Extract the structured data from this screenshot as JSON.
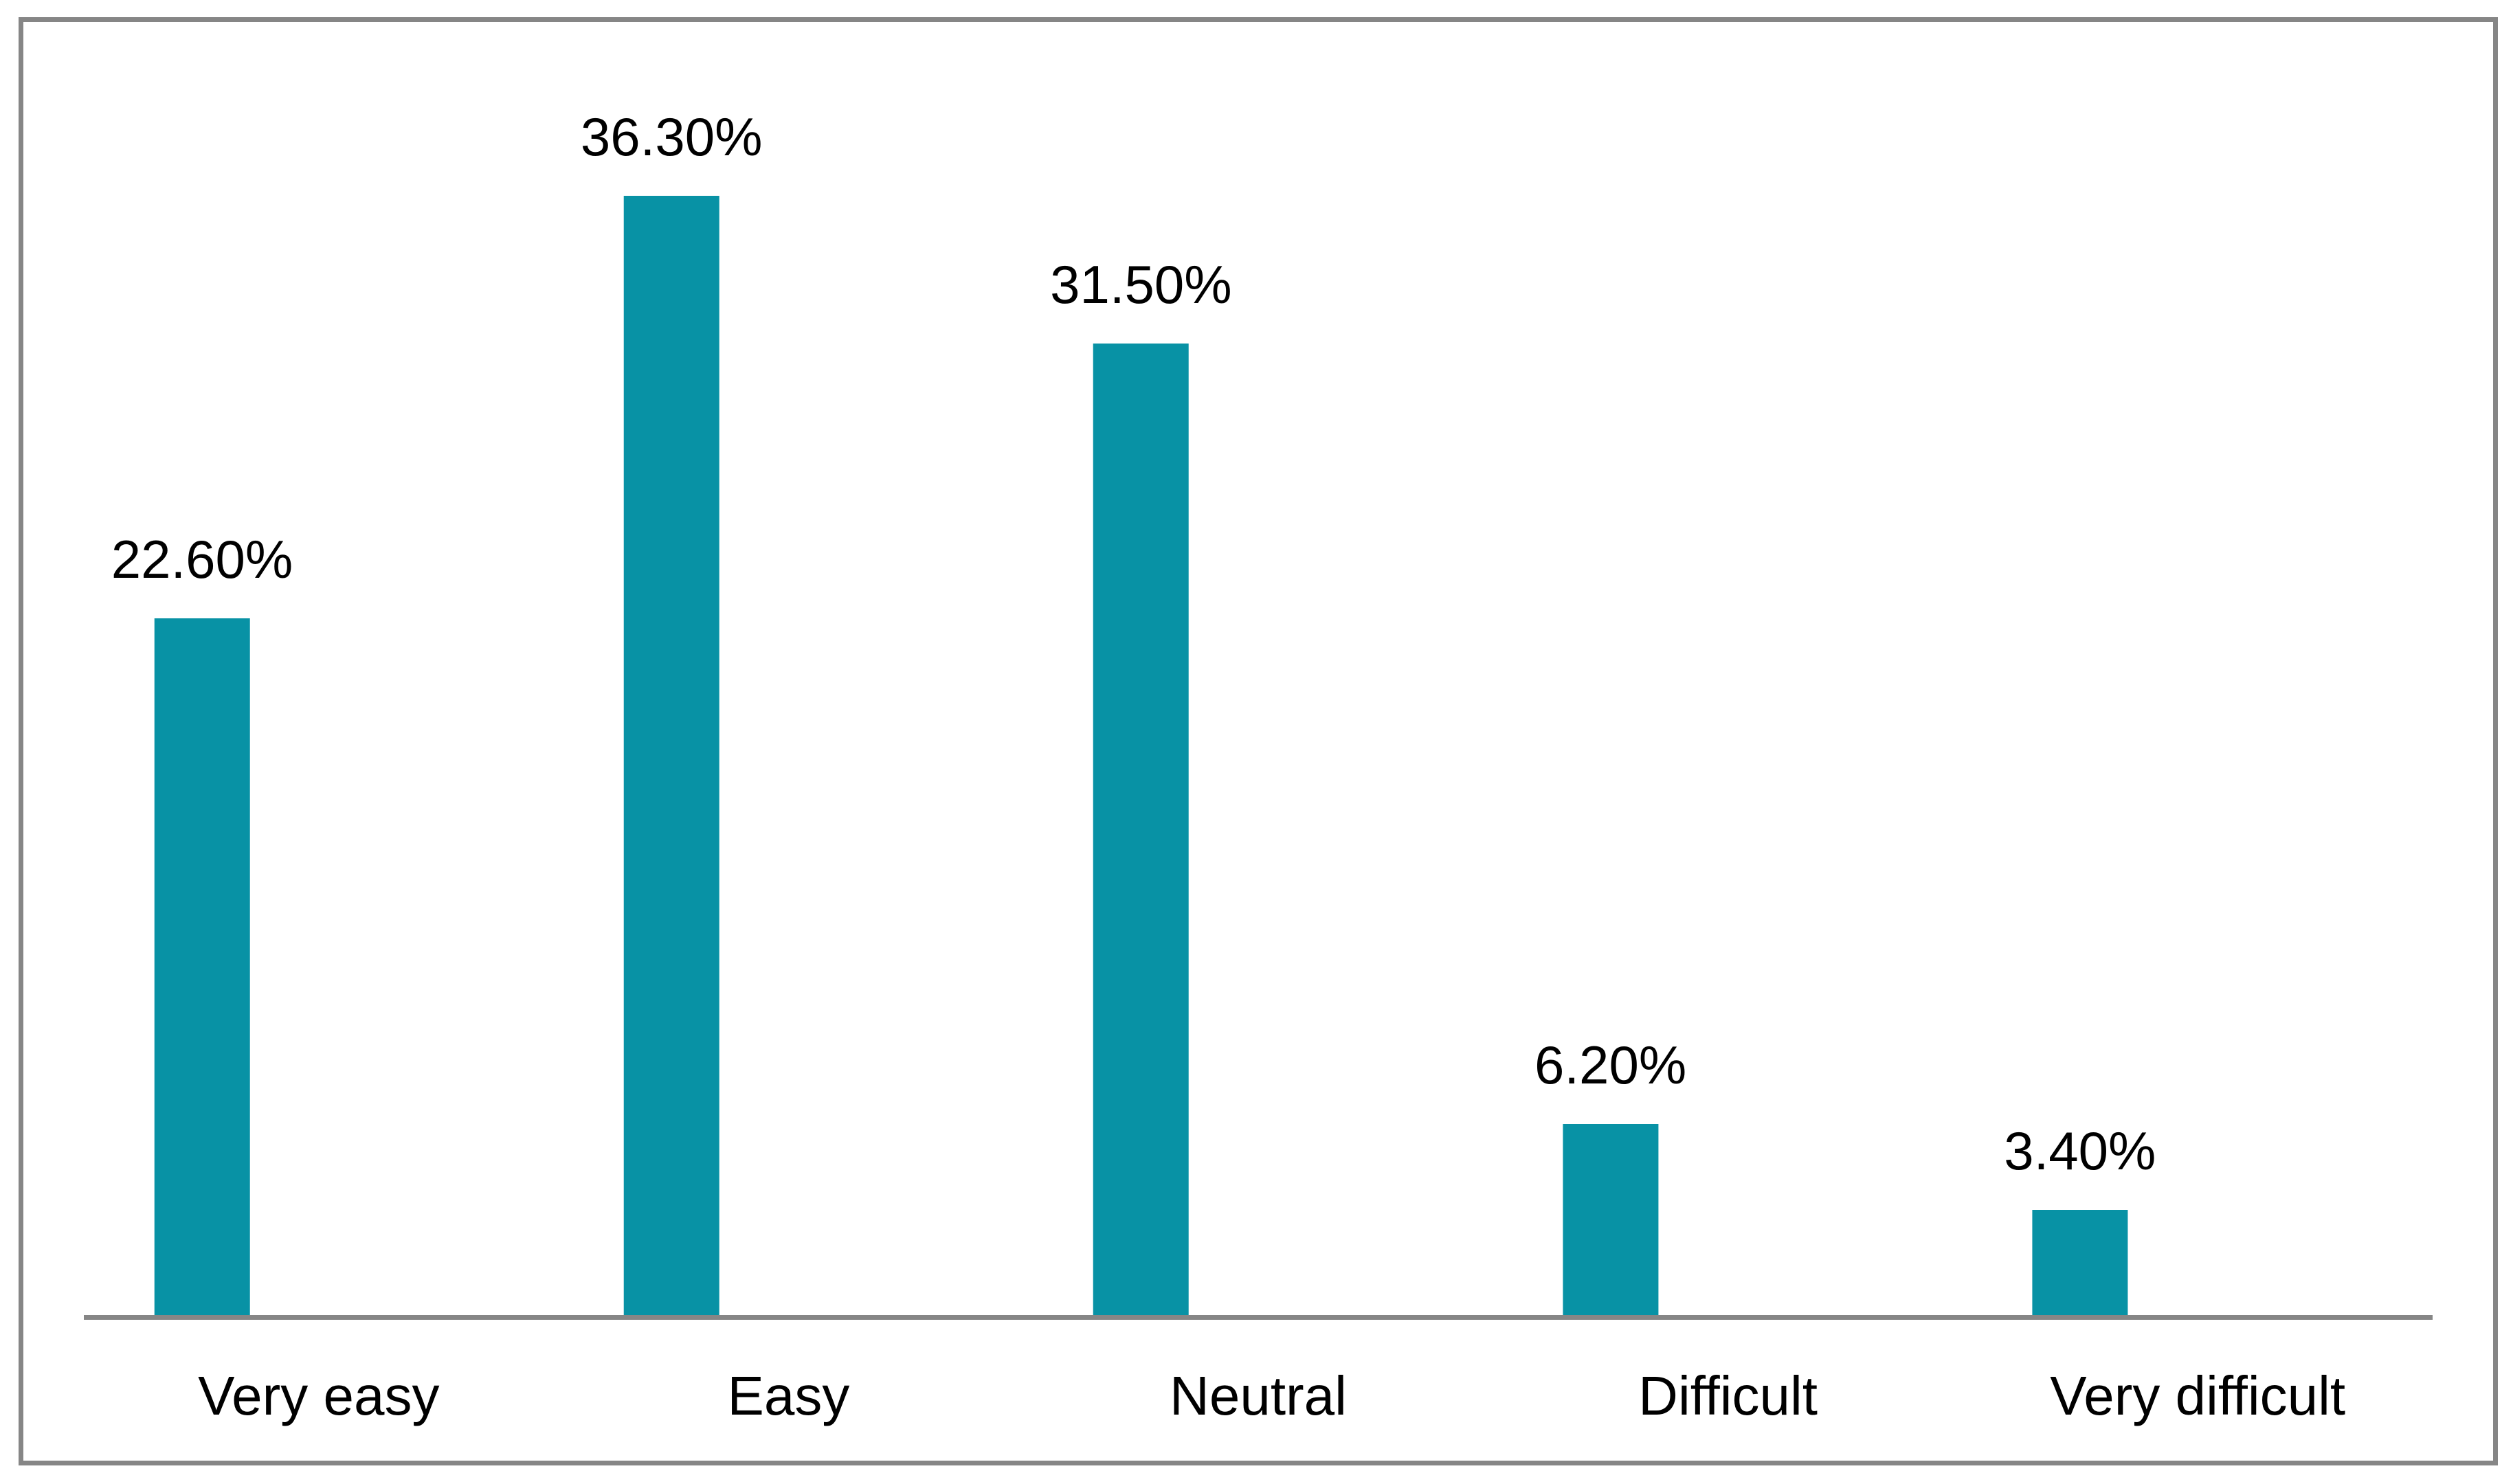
{
  "figure": {
    "background": "#ffffff"
  },
  "chart_data": {
    "type": "bar",
    "categories": [
      "Very easy",
      "Easy",
      "Neutral",
      "Difficult",
      "Very difficult"
    ],
    "values": [
      22.6,
      36.3,
      31.5,
      6.2,
      3.4
    ],
    "value_labels": [
      "22.60%",
      "36.30%",
      "31.50%",
      "6.20%",
      "3.40%"
    ],
    "ylim": [
      0,
      40
    ],
    "unit": "percent",
    "gridlines": false,
    "legend": "none",
    "y_axis_visible": false,
    "x_axis_line_visible": true,
    "data_labels_position": "above-bar",
    "colors": {
      "bar": "#0892a5",
      "axis_line": "#868686",
      "frame_border": "#868686",
      "label_text": "#000000"
    }
  }
}
